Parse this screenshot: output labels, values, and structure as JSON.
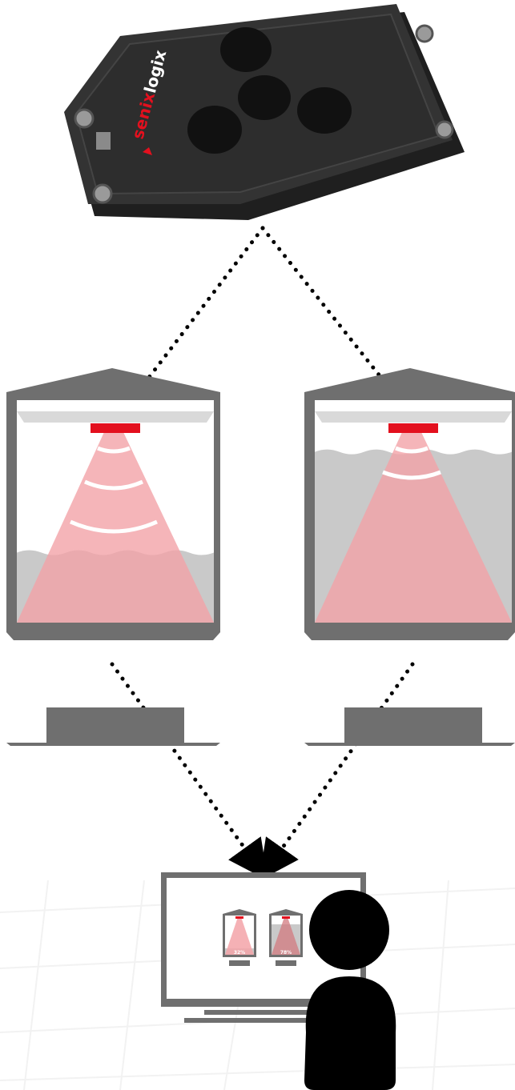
{
  "device": {
    "brand_part1": "senix",
    "brand_part2": "logix",
    "colors": {
      "body": "#2b2b2b",
      "accent": "#e3101e"
    }
  },
  "silos": [
    {
      "fill_percent": 32,
      "label": "32%"
    },
    {
      "fill_percent": 78,
      "label": "78%"
    }
  ],
  "monitor": {
    "mini_labels": [
      "32%",
      "78%"
    ]
  },
  "colors": {
    "frame": "#6f6f6f",
    "roof": "#d9d9d9",
    "material": "#c9c9c9",
    "beam": "#f3a3a8",
    "sensor": "#e3101e",
    "person": "#000000"
  }
}
